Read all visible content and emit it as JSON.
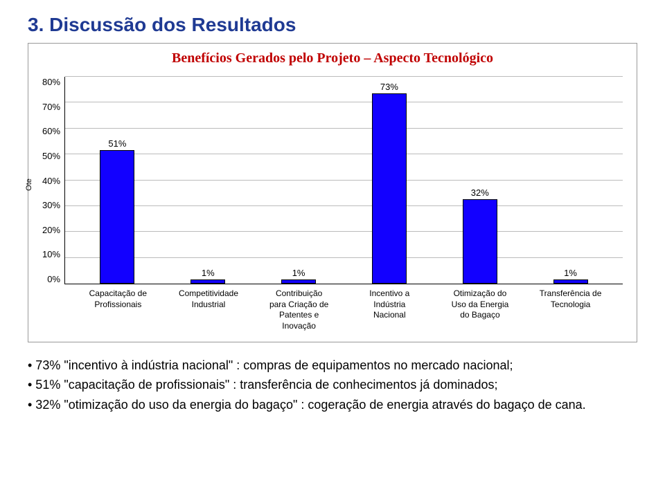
{
  "title": "3. Discussão dos Resultados",
  "chart": {
    "title": "Benefícios Gerados pelo Projeto – Aspecto Tecnológico",
    "type": "bar",
    "y_axis_label": "Ote",
    "ylim_max": 80,
    "ytick_step": 10,
    "yticks": [
      "80%",
      "70%",
      "60%",
      "50%",
      "40%",
      "30%",
      "20%",
      "10%",
      "0%"
    ],
    "bar_color": "#1200ff",
    "bar_border": "#000000",
    "background_color": "#ffffff",
    "grid_color": "#bbbbbb",
    "categories": [
      "Capacitação de Profissionais",
      "Competitividade Industrial",
      "Contribuição para Criação de Patentes e Inovação",
      "Incentivo a Indústria Nacional",
      "Otimização do Uso da Energia do Bagaço",
      "Transferência de Tecnologia"
    ],
    "values": [
      51,
      1,
      1,
      73,
      32,
      1
    ],
    "value_labels": [
      "51%",
      "1%",
      "1%",
      "73%",
      "32%",
      "1%"
    ]
  },
  "bullets": [
    "• 73% \"incentivo à indústria nacional\" : compras de equipamentos no mercado nacional;",
    "• 51% \"capacitação de profissionais\" : transferência de conhecimentos já dominados;",
    "• 32% \"otimização do uso da energia do bagaço\" : cogeração de energia através do bagaço de cana."
  ]
}
